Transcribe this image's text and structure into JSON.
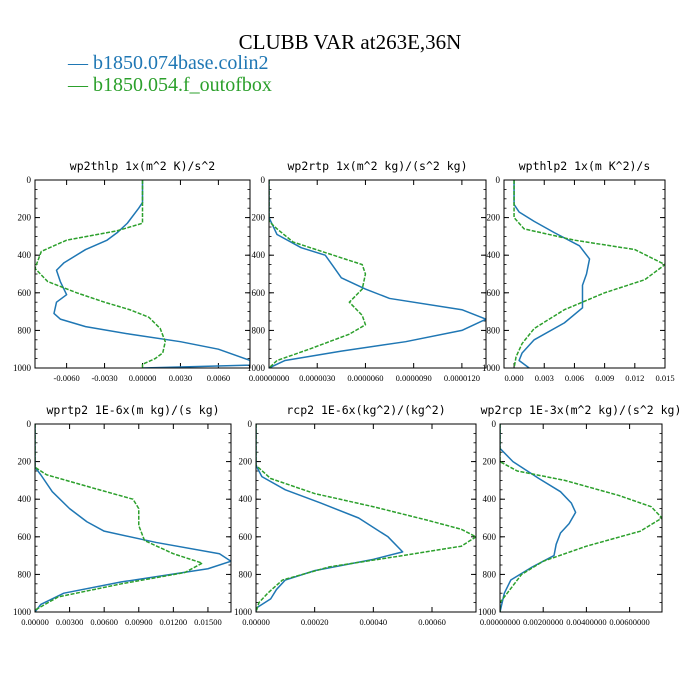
{
  "title": "CLUBB VAR at263E,36N",
  "legend": [
    {
      "name": "b1850.074base.colin2",
      "color": "#1f77b4"
    },
    {
      "name": "b1850.054.f_outofbox",
      "color": "#2ca02c"
    }
  ],
  "chart_data": [
    {
      "type": "line",
      "title": "wp2thlp  1x(m^2 K)/s^2",
      "xlim": [
        -0.0085,
        0.0085
      ],
      "xticks": [
        -0.006,
        -0.003,
        0.0,
        0.003,
        0.006
      ],
      "xticklabels": [
        "-0.0060",
        "-0.0030",
        "0.00000",
        "0.0030",
        "0.0060"
      ],
      "ylim": [
        0,
        1000
      ],
      "yticks": [
        0,
        200,
        400,
        600,
        800,
        1000
      ],
      "series": [
        {
          "name": "b1850.074base.colin2",
          "points": [
            [
              0.0,
              0
            ],
            [
              0.0,
              120
            ],
            [
              -0.0003,
              150
            ],
            [
              -0.0012,
              230
            ],
            [
              -0.002,
              280
            ],
            [
              -0.0028,
              320
            ],
            [
              -0.0045,
              370
            ],
            [
              -0.0062,
              440
            ],
            [
              -0.0068,
              480
            ],
            [
              -0.0065,
              540
            ],
            [
              -0.006,
              610
            ],
            [
              -0.0068,
              650
            ],
            [
              -0.007,
              710
            ],
            [
              -0.0065,
              740
            ],
            [
              -0.0045,
              780
            ],
            [
              -0.001,
              820
            ],
            [
              0.003,
              860
            ],
            [
              0.006,
              900
            ],
            [
              0.0085,
              960
            ],
            [
              0.0085,
              985
            ],
            [
              0.0,
              1000
            ]
          ]
        },
        {
          "name": "b1850.054.f_outofbox",
          "points": [
            [
              0.0,
              0
            ],
            [
              0.0,
              130
            ],
            [
              0.0,
              230
            ],
            [
              -0.002,
              270
            ],
            [
              -0.006,
              320
            ],
            [
              -0.008,
              380
            ],
            [
              -0.0085,
              470
            ],
            [
              -0.0075,
              540
            ],
            [
              -0.0052,
              600
            ],
            [
              -0.003,
              650
            ],
            [
              -0.001,
              690
            ],
            [
              0.0005,
              730
            ],
            [
              0.0014,
              790
            ],
            [
              0.0018,
              860
            ],
            [
              0.0016,
              920
            ],
            [
              0.001,
              950
            ],
            [
              0.0,
              980
            ],
            [
              0.0,
              1000
            ]
          ]
        }
      ]
    },
    {
      "type": "line",
      "title": "wp2rtp  1x(m^2 kg)/(s^2 kg)",
      "xlim": [
        0.0,
        1.35e-05
      ],
      "xticks": [
        0.0,
        3e-06,
        6e-06,
        9e-06,
        1.2e-05
      ],
      "xticklabels": [
        "0.00000000",
        "0.0000030",
        "0.0000060",
        "0.0000090",
        "0.0000120"
      ],
      "ylim": [
        0,
        1000
      ],
      "yticks": [
        0,
        200,
        400,
        600,
        800,
        1000
      ],
      "series": [
        {
          "name": "b1850.074base.colin2",
          "points": [
            [
              0.0,
              0
            ],
            [
              0.0,
              200
            ],
            [
              5e-07,
              290
            ],
            [
              2e-06,
              360
            ],
            [
              3.5e-06,
              400
            ],
            [
              4e-06,
              460
            ],
            [
              4.5e-06,
              520
            ],
            [
              6e-06,
              580
            ],
            [
              7.5e-06,
              630
            ],
            [
              1.2e-05,
              690
            ],
            [
              1.35e-05,
              740
            ],
            [
              1.2e-05,
              800
            ],
            [
              8.5e-06,
              860
            ],
            [
              4.5e-06,
              910
            ],
            [
              1e-06,
              960
            ],
            [
              0.0,
              1000
            ]
          ]
        },
        {
          "name": "b1850.054.f_outofbox",
          "points": [
            [
              0.0,
              0
            ],
            [
              0.0,
              220
            ],
            [
              5e-07,
              260
            ],
            [
              1.5e-06,
              330
            ],
            [
              4e-06,
              400
            ],
            [
              5.8e-06,
              450
            ],
            [
              6e-06,
              500
            ],
            [
              5.8e-06,
              580
            ],
            [
              5e-06,
              650
            ],
            [
              5.8e-06,
              720
            ],
            [
              6e-06,
              770
            ],
            [
              5e-06,
              820
            ],
            [
              2.5e-06,
              900
            ],
            [
              5e-07,
              960
            ],
            [
              0.0,
              1000
            ]
          ]
        }
      ]
    },
    {
      "type": "line",
      "title": "wpthlp2  1x(m K^2)/s",
      "xlim": [
        -0.001,
        0.015
      ],
      "xticks": [
        0.0,
        0.003,
        0.006,
        0.009,
        0.012,
        0.015
      ],
      "xticklabels": [
        "0.000",
        "0.003",
        "0.006",
        "0.009",
        "0.012",
        "0.015"
      ],
      "ylim": [
        0,
        1000
      ],
      "yticks": [
        0,
        200,
        400,
        600,
        800,
        1000
      ],
      "series": [
        {
          "name": "b1850.074base.colin2",
          "points": [
            [
              0.0,
              0
            ],
            [
              0.0,
              130
            ],
            [
              0.0005,
              170
            ],
            [
              0.002,
              220
            ],
            [
              0.004,
              280
            ],
            [
              0.0065,
              350
            ],
            [
              0.0075,
              420
            ],
            [
              0.0072,
              500
            ],
            [
              0.0068,
              560
            ],
            [
              0.0068,
              620
            ],
            [
              0.0068,
              680
            ],
            [
              0.005,
              760
            ],
            [
              0.002,
              850
            ],
            [
              0.0008,
              920
            ],
            [
              0.0005,
              960
            ],
            [
              0.0015,
              1000
            ]
          ]
        },
        {
          "name": "b1850.054.f_outofbox",
          "points": [
            [
              0.0,
              0
            ],
            [
              0.0,
              100
            ],
            [
              0.0,
              200
            ],
            [
              0.001,
              260
            ],
            [
              0.006,
              320
            ],
            [
              0.012,
              370
            ],
            [
              0.015,
              450
            ],
            [
              0.013,
              530
            ],
            [
              0.009,
              600
            ],
            [
              0.005,
              690
            ],
            [
              0.002,
              790
            ],
            [
              0.0008,
              870
            ],
            [
              0.0002,
              940
            ],
            [
              0.0,
              1000
            ]
          ]
        }
      ]
    },
    {
      "type": "line",
      "title": "wprtp2  1E-6x(m kg)/(s kg)",
      "xlim": [
        0.0,
        0.017
      ],
      "xticks": [
        0.0,
        0.003,
        0.006,
        0.009,
        0.012,
        0.015
      ],
      "xticklabels": [
        "0.00000",
        "0.00300",
        "0.00600",
        "0.00900",
        "0.01200",
        "0.01500"
      ],
      "ylim": [
        0,
        1000
      ],
      "yticks": [
        0,
        200,
        400,
        600,
        800,
        1000
      ],
      "series": [
        {
          "name": "b1850.074base.colin2",
          "points": [
            [
              0.0,
              0
            ],
            [
              0.0,
              230
            ],
            [
              0.0005,
              270
            ],
            [
              0.0015,
              360
            ],
            [
              0.003,
              450
            ],
            [
              0.0045,
              520
            ],
            [
              0.006,
              570
            ],
            [
              0.0105,
              630
            ],
            [
              0.016,
              690
            ],
            [
              0.017,
              730
            ],
            [
              0.015,
              770
            ],
            [
              0.0075,
              840
            ],
            [
              0.0025,
              900
            ],
            [
              0.0005,
              960
            ],
            [
              0.0,
              1000
            ]
          ]
        },
        {
          "name": "b1850.054.f_outofbox",
          "points": [
            [
              0.0,
              0
            ],
            [
              0.0,
              230
            ],
            [
              0.001,
              270
            ],
            [
              0.005,
              340
            ],
            [
              0.0085,
              400
            ],
            [
              0.009,
              450
            ],
            [
              0.009,
              540
            ],
            [
              0.0095,
              620
            ],
            [
              0.012,
              690
            ],
            [
              0.0145,
              740
            ],
            [
              0.013,
              790
            ],
            [
              0.0075,
              850
            ],
            [
              0.002,
              920
            ],
            [
              0.0,
              990
            ],
            [
              0.0,
              1000
            ]
          ]
        }
      ]
    },
    {
      "type": "line",
      "title": "rcp2  1E-6x(kg^2)/(kg^2)",
      "xlim": [
        0.0,
        0.00075
      ],
      "xticks": [
        0.0,
        0.0002,
        0.0004,
        0.0006
      ],
      "xticklabels": [
        "0.00000",
        "0.00020",
        "0.00040",
        "0.00060"
      ],
      "ylim": [
        0,
        1000
      ],
      "yticks": [
        0,
        200,
        400,
        600,
        800,
        1000
      ],
      "series": [
        {
          "name": "b1850.074base.colin2",
          "points": [
            [
              0.0,
              0
            ],
            [
              0.0,
              220
            ],
            [
              2e-05,
              280
            ],
            [
              0.0001,
              350
            ],
            [
              0.00022,
              420
            ],
            [
              0.00035,
              500
            ],
            [
              0.00045,
              600
            ],
            [
              0.0005,
              680
            ],
            [
              0.0004,
              720
            ],
            [
              0.0002,
              780
            ],
            [
              0.0001,
              830
            ],
            [
              7e-05,
              880
            ],
            [
              5e-05,
              930
            ],
            [
              0.0,
              980
            ],
            [
              0.0,
              1000
            ]
          ]
        },
        {
          "name": "b1850.054.f_outofbox",
          "points": [
            [
              0.0,
              0
            ],
            [
              0.0,
              220
            ],
            [
              5e-05,
              290
            ],
            [
              0.0002,
              370
            ],
            [
              0.0004,
              440
            ],
            [
              0.00058,
              510
            ],
            [
              0.0007,
              560
            ],
            [
              0.00075,
              600
            ],
            [
              0.0007,
              650
            ],
            [
              0.0005,
              700
            ],
            [
              0.00025,
              760
            ],
            [
              9e-05,
              830
            ],
            [
              4e-05,
              900
            ],
            [
              1e-05,
              950
            ],
            [
              0.0,
              1000
            ]
          ]
        }
      ]
    },
    {
      "type": "line",
      "title": "wp2rcp  1E-3x(m^2 kg)/(s^2 kg)",
      "xlim": [
        0.0,
        0.0075
      ],
      "xticks": [
        0.0,
        0.002,
        0.004,
        0.006
      ],
      "xticklabels": [
        "0.00000000",
        "0.00200000",
        "0.00400000",
        "0.00600000"
      ],
      "ylim": [
        0,
        1000
      ],
      "yticks": [
        0,
        200,
        400,
        600,
        800,
        1000
      ],
      "series": [
        {
          "name": "b1850.074base.colin2",
          "points": [
            [
              0.0,
              0
            ],
            [
              0.0,
              130
            ],
            [
              0.0006,
              200
            ],
            [
              0.0018,
              290
            ],
            [
              0.0028,
              360
            ],
            [
              0.0033,
              420
            ],
            [
              0.0035,
              470
            ],
            [
              0.0032,
              530
            ],
            [
              0.0028,
              580
            ],
            [
              0.0026,
              640
            ],
            [
              0.0025,
              700
            ],
            [
              0.0015,
              760
            ],
            [
              0.0005,
              830
            ],
            [
              0.0002,
              900
            ],
            [
              0.0,
              1000
            ]
          ]
        },
        {
          "name": "b1850.054.f_outofbox",
          "points": [
            [
              0.0,
              0
            ],
            [
              0.0,
              200
            ],
            [
              0.0008,
              250
            ],
            [
              0.003,
              300
            ],
            [
              0.0055,
              380
            ],
            [
              0.007,
              440
            ],
            [
              0.0075,
              500
            ],
            [
              0.0065,
              570
            ],
            [
              0.004,
              650
            ],
            [
              0.002,
              730
            ],
            [
              0.001,
              800
            ],
            [
              0.0004,
              890
            ],
            [
              0.0,
              950
            ],
            [
              0.0,
              1000
            ]
          ]
        }
      ]
    }
  ]
}
